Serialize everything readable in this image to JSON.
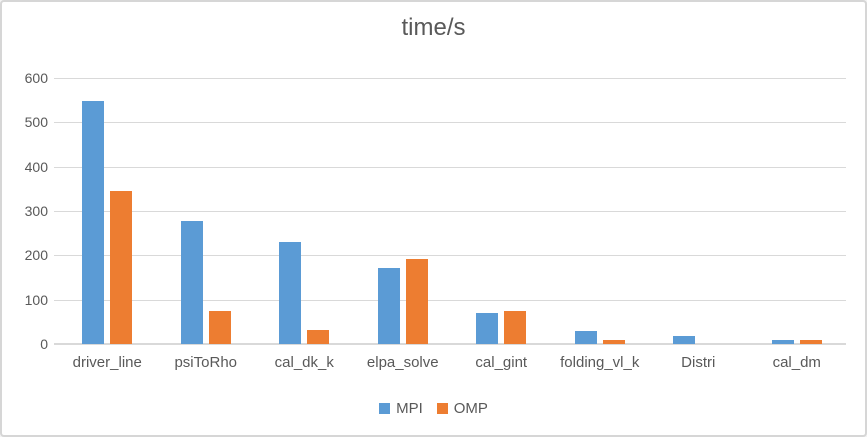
{
  "window": {
    "background": "#ffffff",
    "border_color": "#d6d6d6"
  },
  "chart_data": {
    "type": "bar",
    "title": "time/s",
    "categories": [
      "driver_line",
      "psiToRho",
      "cal_dk_k",
      "elpa_solve",
      "cal_gint",
      "folding_vl_k",
      "Distri",
      "cal_dm"
    ],
    "series": [
      {
        "name": "MPI",
        "color": "#5B9BD5",
        "values": [
          548,
          277,
          230,
          172,
          69,
          29,
          19,
          10
        ]
      },
      {
        "name": "OMP",
        "color": "#ED7D31",
        "values": [
          345,
          75,
          32,
          191,
          74,
          9,
          0,
          10
        ]
      }
    ],
    "xlabel": "",
    "ylabel": "",
    "ylim": [
      0,
      600
    ],
    "yticks": [
      0,
      100,
      200,
      300,
      400,
      500,
      600
    ],
    "grid": true,
    "gridline_color": "#d9d9d9",
    "text_color": "#595959",
    "legend_position": "bottom"
  }
}
